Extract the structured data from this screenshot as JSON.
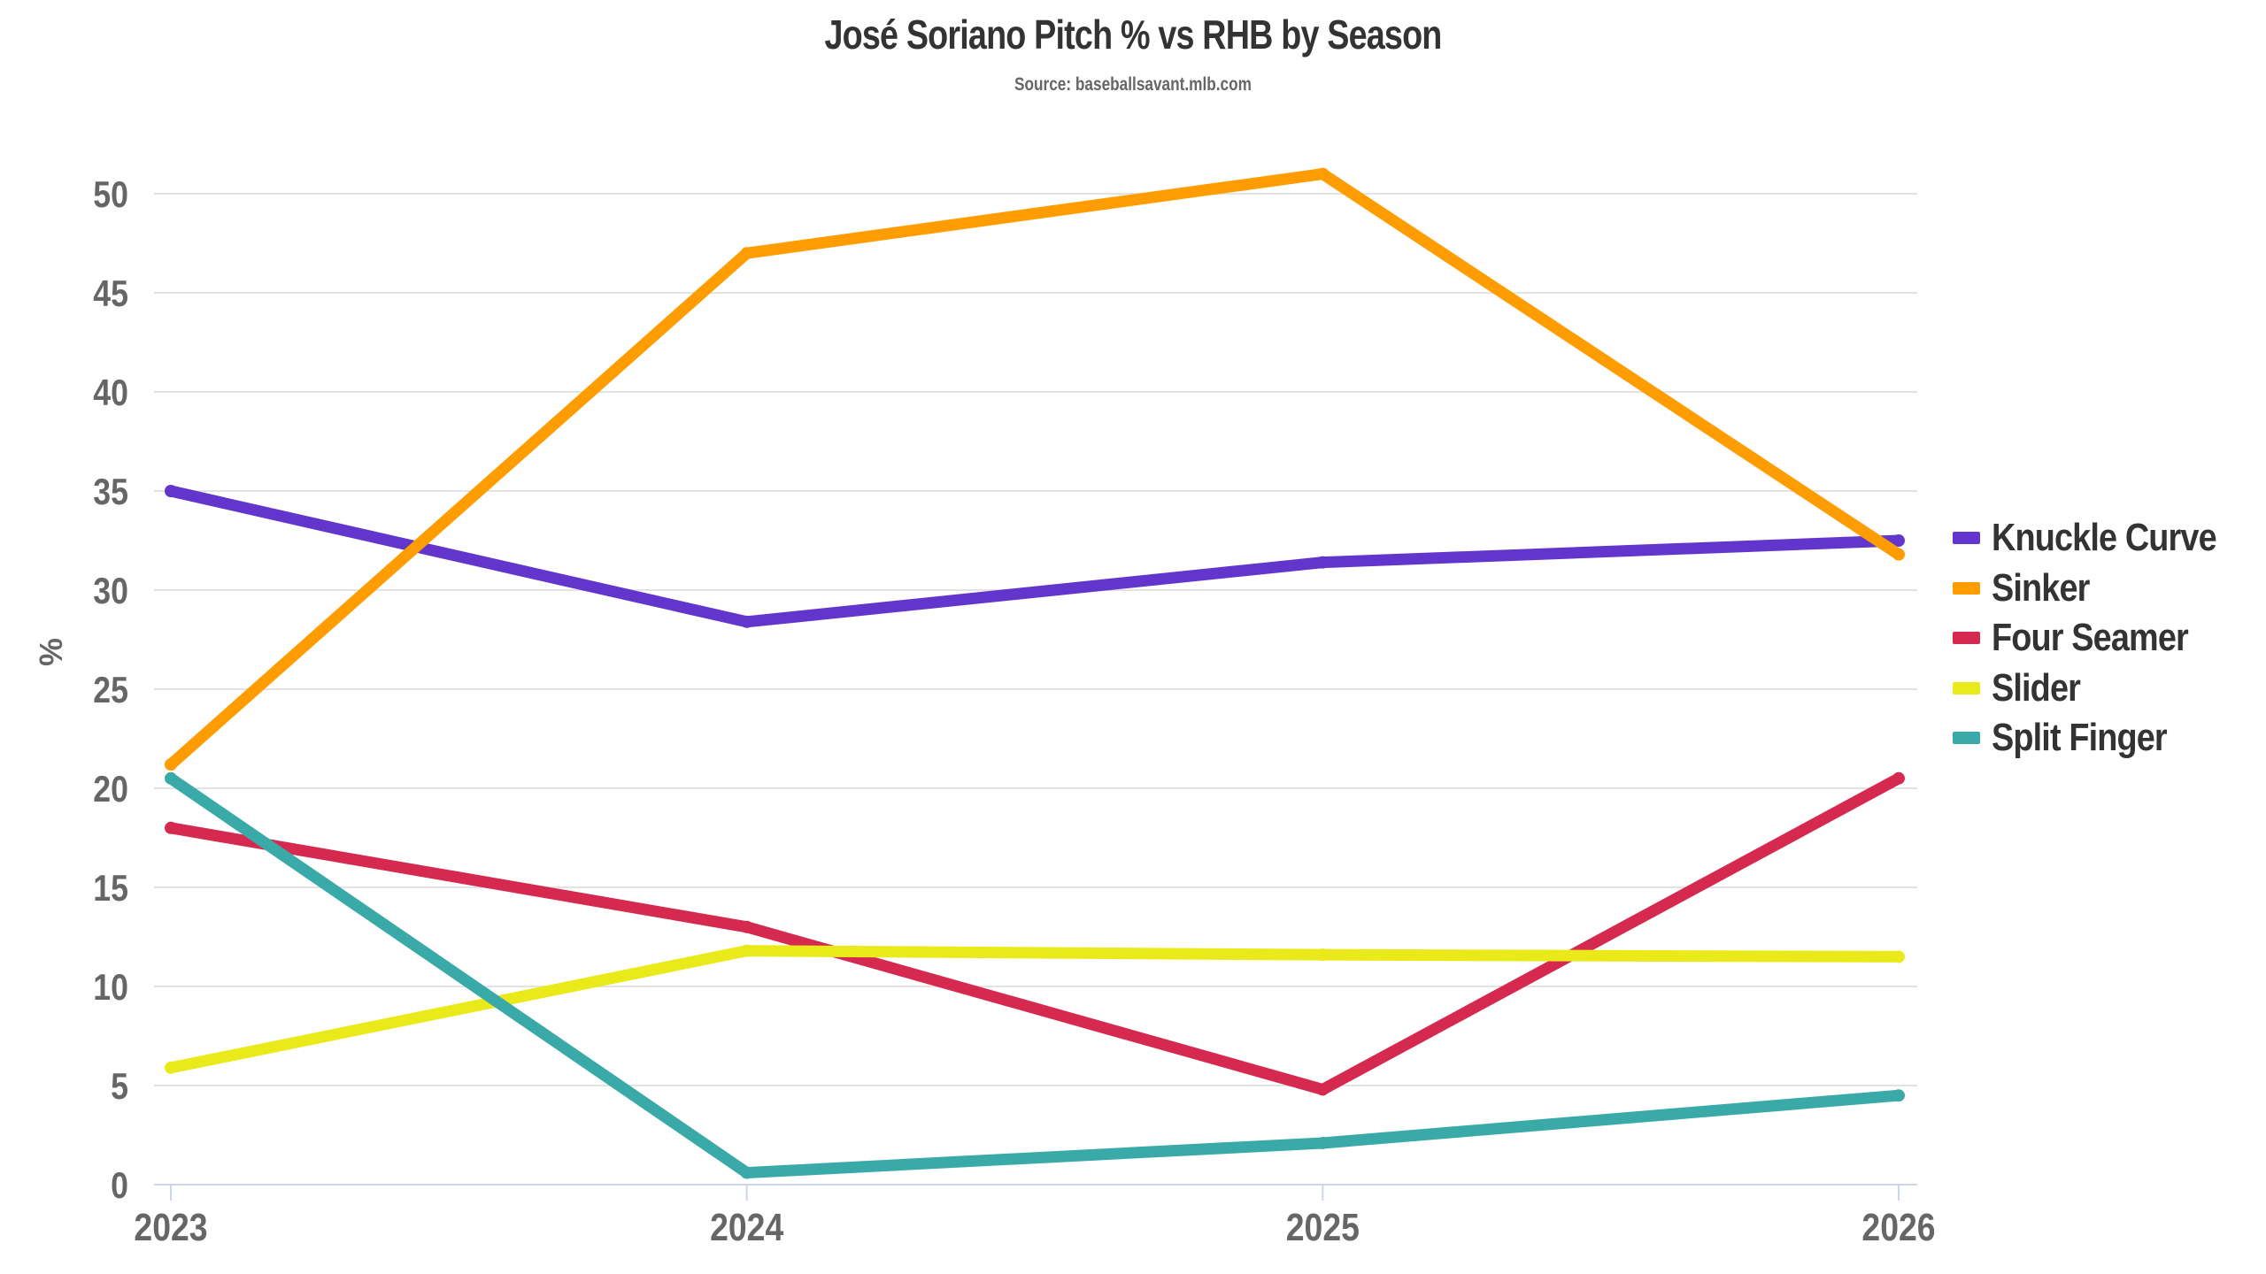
{
  "chart_data": {
    "type": "line",
    "title": "José Soriano Pitch % vs RHB by Season",
    "subtitle": "Source: baseballsavant.mlb.com",
    "xlabel": "",
    "ylabel": "%",
    "x": [
      "2023",
      "2024",
      "2025",
      "2026"
    ],
    "ylim": [
      0,
      52
    ],
    "yticks": [
      "0",
      "5",
      "10",
      "15",
      "20",
      "25",
      "30",
      "35",
      "40",
      "45",
      "50"
    ],
    "grid": true,
    "legend_position": "right",
    "series": [
      {
        "name": "Knuckle Curve",
        "color": "#6236cc",
        "values": [
          35.0,
          28.4,
          31.4,
          32.5
        ]
      },
      {
        "name": "Sinker",
        "color": "#ff9c00",
        "values": [
          21.2,
          47.0,
          51.0,
          31.8
        ]
      },
      {
        "name": "Four Seamer",
        "color": "#d6294f",
        "values": [
          18.0,
          13.0,
          4.8,
          20.5
        ]
      },
      {
        "name": "Slider",
        "color": "#eaea1a",
        "values": [
          5.9,
          11.8,
          11.6,
          11.5
        ]
      },
      {
        "name": "Split Finger",
        "color": "#3aaaa8",
        "values": [
          20.5,
          0.6,
          2.1,
          4.5
        ]
      }
    ]
  }
}
